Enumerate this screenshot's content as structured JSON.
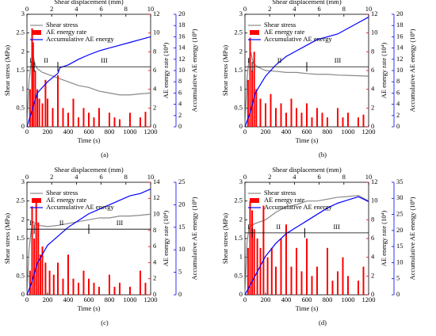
{
  "chart_data": [
    {
      "type": "line-bar",
      "panel_label": "(a)",
      "xlabel": "Time (s)",
      "x2label": "Shear displacement (mm)",
      "ylabel": "Shear stress (MPa)",
      "y2label": "AE energy rate (10⁴)",
      "y3label": "Accumulative AE energy (10⁶)",
      "xlim": [
        0,
        1200
      ],
      "xticks": [
        0,
        200,
        400,
        600,
        800,
        1000,
        1200
      ],
      "x2lim": [
        0,
        10
      ],
      "x2ticks": [
        0,
        2,
        4,
        6,
        8,
        10
      ],
      "ylim": [
        0,
        3
      ],
      "yticks": [
        0,
        0.5,
        1,
        1.5,
        2,
        2.5,
        3
      ],
      "y2lim": [
        0,
        12
      ],
      "y2ticks": [
        0,
        2,
        4,
        6,
        8,
        10,
        12
      ],
      "y3lim": [
        0,
        20
      ],
      "y3ticks": [
        0,
        2,
        4,
        6,
        8,
        10,
        12,
        14,
        16,
        18,
        20
      ],
      "phase_labels": [
        "I",
        "II",
        "III"
      ],
      "phase_boundaries": [
        70,
        300,
        600
      ],
      "phase_line": 1.6,
      "series": [
        {
          "name": "Shear stress",
          "color": "#888888",
          "x": [
            0,
            20,
            40,
            60,
            80,
            100,
            150,
            200,
            300,
            400,
            500,
            600,
            700,
            800,
            900,
            1000,
            1100,
            1200
          ],
          "values": [
            0,
            1.2,
            1.7,
            1.9,
            1.65,
            1.55,
            1.45,
            1.4,
            1.3,
            1.2,
            1.1,
            1.05,
            0.95,
            0.9,
            0.85,
            0.85,
            0.88,
            0.9
          ]
        },
        {
          "name": "AE energy rate",
          "color": "#ff0000",
          "axis": "y2",
          "x": [
            30,
            50,
            60,
            80,
            100,
            120,
            150,
            180,
            200,
            250,
            300,
            350,
            400,
            450,
            500,
            550,
            600,
            650,
            700,
            800,
            850,
            900,
            1000,
            1100,
            1150
          ],
          "values": [
            4,
            10.5,
            9,
            6,
            4,
            3,
            2.5,
            5,
            3,
            2,
            5.5,
            2,
            1.5,
            3,
            1,
            2,
            1.5,
            1,
            2,
            1.5,
            1,
            0.8,
            1.5,
            1,
            1.6
          ]
        },
        {
          "name": "Accumulative AE energy",
          "color": "#0000ff",
          "axis": "y3",
          "x": [
            0,
            50,
            100,
            200,
            300,
            320,
            400,
            500,
            600,
            700,
            800,
            900,
            1000,
            1100,
            1200
          ],
          "values": [
            0,
            3,
            6,
            8,
            9.5,
            10.5,
            11,
            12,
            12.8,
            13.5,
            14,
            14.5,
            15,
            15.5,
            16
          ]
        }
      ]
    },
    {
      "type": "line-bar",
      "panel_label": "(b)",
      "xlabel": "Time (s)",
      "x2label": "Shear displacement (mm)",
      "ylabel": "Shear stress (MPa)",
      "y2label": "AE energy rate (10⁴)",
      "y3label": "Accumulative AE energy (10⁶)",
      "xlim": [
        0,
        1200
      ],
      "xticks": [
        0,
        200,
        400,
        600,
        800,
        1000,
        1200
      ],
      "x2lim": [
        0,
        10
      ],
      "x2ticks": [
        0,
        2,
        4,
        6,
        8,
        10
      ],
      "ylim": [
        0,
        3
      ],
      "yticks": [
        0,
        0.5,
        1,
        1.5,
        2,
        2.5,
        3
      ],
      "y2lim": [
        0,
        12
      ],
      "y2ticks": [
        0,
        2,
        4,
        6,
        8,
        10,
        12
      ],
      "y3lim": [
        0,
        20
      ],
      "y3ticks": [
        0,
        2,
        4,
        6,
        8,
        10,
        12,
        14,
        16,
        18,
        20
      ],
      "phase_labels": [
        "I",
        "II",
        "III"
      ],
      "phase_boundaries": [
        70,
        600
      ],
      "phase_line": 1.6,
      "series": [
        {
          "name": "Shear stress",
          "color": "#888888",
          "x": [
            0,
            20,
            40,
            60,
            80,
            120,
            200,
            300,
            400,
            500,
            600,
            700,
            800,
            900,
            1000,
            1100,
            1200
          ],
          "values": [
            0,
            1.3,
            1.8,
            1.95,
            1.7,
            1.6,
            1.5,
            1.48,
            1.45,
            1.45,
            1.42,
            1.4,
            1.4,
            1.38,
            1.37,
            1.36,
            1.35
          ]
        },
        {
          "name": "AE energy rate",
          "color": "#ff0000",
          "axis": "y2",
          "x": [
            30,
            50,
            70,
            90,
            110,
            150,
            200,
            250,
            300,
            350,
            400,
            450,
            500,
            550,
            600,
            650,
            700,
            750,
            800,
            900,
            950,
            1000,
            1100,
            1150
          ],
          "values": [
            5,
            9.5,
            6,
            8,
            4,
            3,
            2.5,
            3.5,
            2,
            2.5,
            1.5,
            3,
            2,
            1.5,
            2.5,
            1,
            2,
            1.5,
            1,
            2,
            1,
            1.5,
            1,
            1.3
          ]
        },
        {
          "name": "Accumulative AE energy",
          "color": "#0000ff",
          "axis": "y3",
          "x": [
            0,
            50,
            100,
            200,
            300,
            400,
            500,
            600,
            700,
            800,
            900,
            1000,
            1100,
            1200
          ],
          "values": [
            0,
            2.5,
            6,
            9,
            11,
            12.5,
            13.5,
            14.5,
            15.5,
            16,
            16.5,
            17.5,
            18.5,
            19.5
          ]
        }
      ]
    },
    {
      "type": "line-bar",
      "panel_label": "(c)",
      "xlabel": "Time (s)",
      "x2label": "Shear displacement (mm)",
      "ylabel": "Shear stress (MPa)",
      "y2label": "AE energy rate (10⁴)",
      "y3label": "Accumulative AE energy (10⁶)",
      "xlim": [
        0,
        1200
      ],
      "xticks": [
        0,
        200,
        400,
        600,
        800,
        1000,
        1200
      ],
      "x2lim": [
        0,
        10
      ],
      "x2ticks": [
        0,
        2,
        4,
        6,
        8,
        10
      ],
      "ylim": [
        0,
        3
      ],
      "yticks": [
        0,
        0.5,
        1,
        1.5,
        2,
        2.5,
        3
      ],
      "y2lim": [
        0,
        14
      ],
      "y2ticks": [
        0,
        2,
        4,
        6,
        8,
        10,
        12,
        14
      ],
      "y3lim": [
        0,
        25
      ],
      "y3ticks": [
        0,
        5,
        10,
        15,
        20,
        25
      ],
      "phase_labels": [
        "I",
        "II",
        "III"
      ],
      "phase_boundaries": [
        70,
        600
      ],
      "phase_line": 1.75,
      "series": [
        {
          "name": "Shear stress",
          "color": "#888888",
          "x": [
            0,
            20,
            40,
            60,
            80,
            120,
            200,
            300,
            400,
            500,
            600,
            700,
            800,
            900,
            1000,
            1100,
            1200
          ],
          "values": [
            0,
            1.2,
            1.7,
            1.95,
            1.9,
            1.85,
            1.82,
            1.85,
            1.9,
            1.95,
            2.0,
            2.05,
            2.05,
            2.1,
            2.1,
            2.12,
            2.15
          ]
        },
        {
          "name": "AE energy rate",
          "color": "#ff0000",
          "axis": "y2",
          "x": [
            30,
            50,
            70,
            90,
            110,
            130,
            150,
            180,
            220,
            260,
            300,
            350,
            400,
            450,
            500,
            550,
            600,
            650,
            700,
            800,
            850,
            900,
            1000,
            1100,
            1150
          ],
          "values": [
            3,
            11,
            7,
            12,
            9,
            5,
            6,
            4,
            3,
            2.5,
            4,
            2,
            5,
            2,
            1.5,
            3,
            2,
            1.5,
            1,
            2.5,
            1,
            1.5,
            1,
            3,
            1.5
          ]
        },
        {
          "name": "Accumulative AE energy",
          "color": "#0000ff",
          "axis": "y3",
          "x": [
            0,
            50,
            100,
            150,
            200,
            300,
            400,
            500,
            600,
            700,
            800,
            900,
            1000,
            1100,
            1200
          ],
          "values": [
            0,
            3,
            7,
            9,
            11,
            13,
            15,
            16.5,
            18,
            19,
            20,
            21,
            22,
            22.5,
            23.5
          ]
        }
      ]
    },
    {
      "type": "line-bar",
      "panel_label": "(d)",
      "xlabel": "Time (s)",
      "x2label": "Shear displacement (mm)",
      "ylabel": "Shear stress (MPa)",
      "y2label": "AE energy rate (10⁴)",
      "y3label": "Accumulative AE energy (10⁶)",
      "xlim": [
        0,
        1200
      ],
      "xticks": [
        0,
        200,
        400,
        600,
        800,
        1000,
        1200
      ],
      "x2lim": [
        0,
        10
      ],
      "x2ticks": [
        0,
        2,
        4,
        6,
        8,
        10
      ],
      "ylim": [
        0,
        3
      ],
      "yticks": [
        0,
        0.5,
        1,
        1.5,
        2,
        2.5,
        3
      ],
      "y2lim": [
        0,
        12
      ],
      "y2ticks": [
        0,
        2,
        4,
        6,
        8,
        10,
        12
      ],
      "y3lim": [
        0,
        35
      ],
      "y3ticks": [
        0,
        5,
        10,
        15,
        20,
        25,
        30,
        35
      ],
      "phase_labels": [
        "I",
        "II",
        "III"
      ],
      "phase_boundaries": [
        70,
        580
      ],
      "phase_line": 1.65,
      "series": [
        {
          "name": "Shear stress",
          "color": "#888888",
          "x": [
            0,
            20,
            40,
            60,
            100,
            200,
            300,
            400,
            500,
            600,
            700,
            800,
            900,
            1000,
            1100,
            1200
          ],
          "values": [
            0,
            1.4,
            1.8,
            1.85,
            1.9,
            2.0,
            2.2,
            2.35,
            2.4,
            2.5,
            2.5,
            2.55,
            2.6,
            2.62,
            2.65,
            2.5
          ]
        },
        {
          "name": "AE energy rate",
          "color": "#ff0000",
          "axis": "y2",
          "x": [
            30,
            50,
            70,
            90,
            120,
            150,
            180,
            220,
            260,
            300,
            350,
            400,
            450,
            500,
            550,
            600,
            650,
            700,
            800,
            850,
            900,
            950,
            1000,
            1100,
            1150
          ],
          "values": [
            5,
            10,
            9,
            7,
            6,
            5,
            9.5,
            4,
            5,
            3,
            6,
            7.5,
            3,
            5,
            2.5,
            6,
            2,
            3,
            5,
            1.5,
            2.5,
            4,
            2,
            1.5,
            3
          ]
        },
        {
          "name": "Accumulative AE energy",
          "color": "#0000ff",
          "axis": "y3",
          "x": [
            0,
            50,
            100,
            150,
            200,
            300,
            400,
            500,
            600,
            700,
            800,
            900,
            1000,
            1100,
            1200
          ],
          "values": [
            0,
            3,
            6,
            9,
            12,
            16,
            19,
            21,
            23,
            25,
            27,
            28.5,
            29.5,
            30.5,
            29
          ]
        }
      ]
    }
  ]
}
